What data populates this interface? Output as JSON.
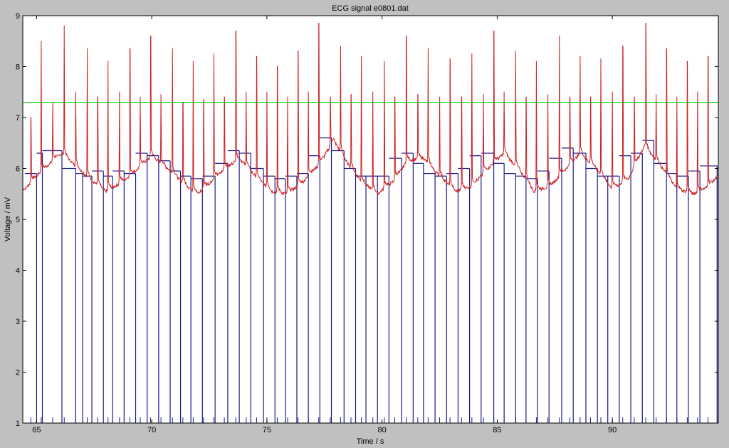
{
  "chart_data": {
    "type": "line",
    "title": "ECG signal e0801.dat",
    "xlabel": "Time / s",
    "ylabel": "Voltage / mV",
    "xlim": [
      64.4,
      94.6
    ],
    "ylim": [
      1,
      9
    ],
    "xticks": [
      65,
      70,
      75,
      80,
      85,
      90
    ],
    "yticks": [
      1,
      2,
      3,
      4,
      5,
      6,
      7,
      8,
      9
    ],
    "grid": false,
    "threshold": {
      "y": 7.3,
      "color": "#00cc00"
    },
    "colors": {
      "ecg": "#cc1f1f",
      "rr": "#1a1a8c",
      "threshold": "#00cc00",
      "axes_bg": "#ffffff",
      "figure_bg": "#c0c0c0"
    },
    "r_peaks": {
      "t": [
        64.75,
        65.2,
        65.7,
        66.2,
        66.7,
        67.2,
        67.65,
        68.1,
        68.6,
        69.05,
        69.5,
        69.95,
        70.4,
        70.9,
        71.35,
        71.8,
        72.25,
        72.7,
        73.15,
        73.65,
        74.1,
        74.55,
        75.0,
        75.45,
        75.9,
        76.35,
        76.8,
        77.25,
        77.75,
        78.2,
        78.65,
        79.1,
        79.6,
        80.1,
        80.55,
        81.05,
        81.55,
        82.0,
        82.5,
        82.95,
        83.45,
        83.9,
        84.4,
        84.85,
        85.3,
        85.8,
        86.25,
        86.7,
        87.2,
        87.7,
        88.15,
        88.6,
        89.05,
        89.5,
        90.0,
        90.45,
        90.95,
        91.45,
        91.9,
        92.35,
        92.8,
        93.25,
        93.7,
        94.15
      ],
      "v": [
        7.0,
        8.5,
        7.3,
        8.8,
        7.5,
        8.35,
        7.4,
        8.1,
        7.5,
        8.35,
        7.4,
        8.6,
        7.45,
        8.35,
        7.3,
        8.1,
        7.35,
        8.25,
        7.4,
        8.7,
        7.5,
        8.2,
        7.5,
        8.0,
        7.4,
        8.3,
        7.5,
        8.85,
        7.4,
        8.4,
        7.45,
        8.2,
        7.5,
        8.1,
        7.4,
        8.6,
        7.45,
        8.35,
        7.4,
        8.15,
        7.4,
        8.25,
        7.45,
        8.7,
        7.5,
        8.3,
        7.4,
        8.1,
        7.45,
        8.6,
        7.4,
        8.2,
        7.4,
        8.15,
        7.5,
        8.4,
        7.4,
        8.85,
        7.45,
        8.35,
        7.4,
        8.1,
        7.5,
        8.2
      ]
    },
    "rr_steps": {
      "t": [
        64.5,
        65.0,
        65.25,
        66.1,
        66.7,
        67.0,
        67.4,
        67.9,
        68.3,
        68.8,
        69.3,
        69.8,
        70.3,
        70.8,
        71.25,
        71.7,
        72.2,
        72.75,
        73.3,
        73.8,
        74.3,
        74.85,
        75.35,
        75.8,
        76.3,
        76.8,
        77.3,
        77.8,
        78.35,
        78.85,
        79.3,
        79.8,
        80.3,
        80.85,
        81.35,
        81.8,
        82.3,
        82.8,
        83.3,
        83.8,
        84.3,
        84.85,
        85.3,
        85.8,
        86.25,
        86.75,
        87.25,
        87.8,
        88.3,
        88.85,
        89.35,
        89.8,
        90.3,
        90.8,
        91.3,
        91.8,
        92.35,
        92.8,
        93.3,
        93.8,
        94.55
      ],
      "v": [
        5.9,
        6.3,
        6.35,
        6.0,
        5.9,
        5.85,
        5.95,
        5.85,
        5.95,
        5.9,
        6.3,
        6.25,
        6.15,
        5.95,
        5.85,
        5.8,
        5.85,
        6.1,
        6.35,
        6.3,
        6.0,
        5.85,
        5.8,
        5.85,
        5.9,
        6.25,
        6.6,
        6.35,
        6.0,
        5.85,
        5.85,
        5.85,
        6.2,
        6.3,
        6.1,
        5.9,
        5.85,
        5.9,
        6.0,
        6.25,
        6.3,
        6.1,
        5.9,
        5.85,
        5.8,
        5.95,
        6.2,
        6.4,
        6.3,
        6.0,
        5.85,
        5.85,
        6.25,
        6.3,
        6.55,
        6.1,
        5.9,
        5.85,
        5.95,
        6.05,
        5.0
      ]
    },
    "baseline_profile": {
      "t": [
        64.5,
        65.2,
        66.1,
        66.7,
        67.3,
        68.0,
        68.6,
        69.3,
        70.0,
        70.7,
        71.4,
        72.0,
        72.6,
        73.2,
        73.8,
        74.5,
        75.2,
        75.9,
        76.6,
        77.3,
        77.9,
        78.5,
        79.1,
        79.8,
        80.5,
        81.1,
        81.8,
        82.5,
        83.2,
        83.9,
        84.6,
        85.3,
        86.0,
        86.6,
        87.3,
        88.0,
        88.6,
        89.3,
        90.0,
        90.7,
        91.4,
        92.1,
        92.8,
        93.5,
        94.2,
        94.55
      ],
      "v": [
        5.6,
        5.95,
        6.3,
        6.05,
        5.8,
        5.55,
        5.7,
        5.95,
        6.25,
        6.0,
        5.7,
        5.5,
        5.75,
        6.0,
        6.2,
        5.85,
        5.55,
        5.5,
        5.75,
        6.1,
        6.55,
        6.1,
        5.75,
        5.5,
        5.75,
        6.15,
        6.2,
        5.85,
        5.55,
        5.65,
        6.0,
        6.3,
        5.95,
        5.55,
        5.65,
        6.0,
        6.3,
        6.0,
        5.6,
        5.8,
        6.45,
        6.05,
        5.6,
        5.5,
        5.65,
        5.85
      ]
    }
  }
}
